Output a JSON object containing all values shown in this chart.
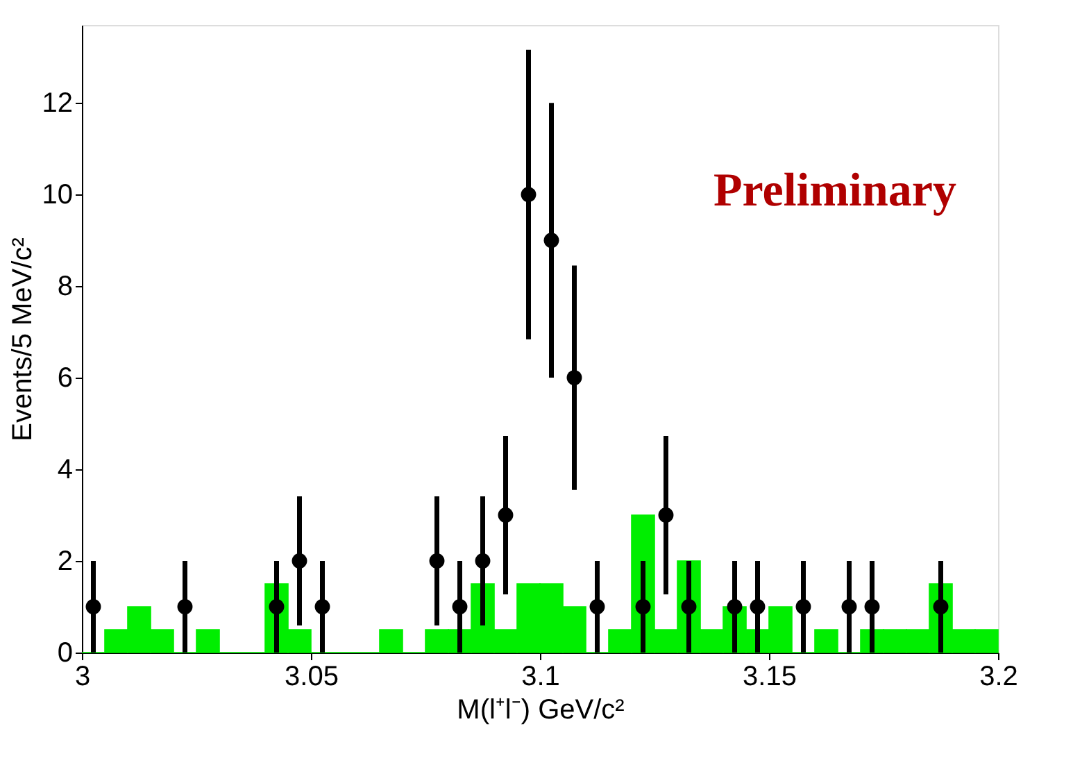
{
  "chart_data": {
    "type": "histogram",
    "xlabel": "M(l⁺l⁻) GeV/c²",
    "ylabel": "Events/5 MeV/c²",
    "annotations": [
      "Preliminary"
    ],
    "bins": [
      3.0,
      3.005,
      3.01,
      3.015,
      3.02,
      3.025,
      3.03,
      3.035,
      3.04,
      3.045,
      3.05,
      3.055,
      3.06,
      3.065,
      3.07,
      3.075,
      3.08,
      3.085,
      3.09,
      3.095,
      3.1,
      3.105,
      3.11,
      3.115,
      3.12,
      3.125,
      3.13,
      3.135,
      3.14,
      3.145,
      3.15,
      3.155,
      3.16,
      3.165,
      3.17,
      3.175,
      3.18,
      3.185,
      3.19,
      3.195,
      3.2
    ],
    "series": [
      {
        "color": "#00ee00",
        "values": [
          0,
          0.5,
          1,
          0.5,
          0,
          0.5,
          0,
          0,
          1.5,
          0.5,
          0,
          0,
          0,
          0.5,
          0,
          0.5,
          0.5,
          1.5,
          0.5,
          1.5,
          1.5,
          1,
          0,
          0.5,
          3,
          0.5,
          2,
          0.5,
          1,
          0.5,
          1,
          0,
          0.5,
          0,
          0.5,
          0.5,
          0.5,
          1.5,
          0.5,
          0.5
        ]
      },
      {
        "type": "scatter",
        "color": "#000000",
        "marker": "circle",
        "x": [
          3.0025,
          3.0225,
          3.0425,
          3.0475,
          3.0525,
          3.0775,
          3.0825,
          3.0875,
          3.0925,
          3.0975,
          3.1025,
          3.1075,
          3.1125,
          3.1225,
          3.1275,
          3.1325,
          3.1425,
          3.1475,
          3.1575,
          3.1675,
          3.1725,
          3.1875
        ],
        "values": [
          1,
          1,
          1,
          2,
          1,
          2,
          1,
          2,
          3,
          10,
          9,
          6,
          1,
          1,
          3,
          1,
          1,
          1,
          1,
          1,
          1,
          1
        ],
        "errors": [
          1,
          1,
          1,
          1.41,
          1,
          1.41,
          1,
          1.41,
          1.73,
          3.16,
          3,
          2.45,
          1,
          1,
          1.73,
          1,
          1,
          1,
          1,
          1,
          1,
          1
        ]
      }
    ],
    "xlim": [
      3.0,
      3.2
    ],
    "xticks": [
      3,
      3.05,
      3.1,
      3.15,
      3.2
    ],
    "ylim": [
      0,
      13.7
    ],
    "yticks": [
      0,
      2,
      4,
      6,
      8,
      10,
      12
    ],
    "grid": false
  }
}
